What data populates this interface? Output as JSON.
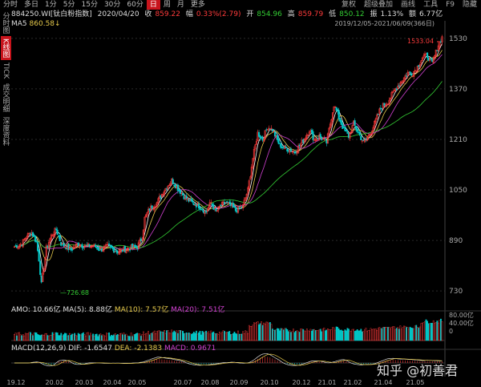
{
  "tabs": [
    "分时",
    "多日",
    "1分",
    "5分",
    "15分",
    "30分",
    "60分",
    "日",
    "周",
    "月",
    "更多"
  ],
  "active_tab": 7,
  "right_tabs": [
    "复权",
    "超级叠加",
    "画线",
    "工具",
    "F9",
    "隐藏"
  ],
  "side_tabs": [
    "分时图",
    "K线图",
    "TICK",
    "成交明细",
    "深度资料"
  ],
  "info": {
    "code": "884250.WI[钛白粉指数]",
    "date": "2020/04/20",
    "close_label": "收",
    "close": "859.22",
    "change_label": "幅",
    "change": "0.33%(2.79)",
    "open_label": "开",
    "open": "854.96",
    "high_label": "高",
    "high": "859.79",
    "low_label": "低",
    "low": "850.12",
    "amp_label": "振",
    "amp": "1.13%",
    "amount_label": "额",
    "amount": "6.77亿"
  },
  "ma5": {
    "label": "MA5",
    "value": "860.58↓"
  },
  "date_range": "2019/12/05-2021/06/09(366日)",
  "price_axis": [
    "1530",
    "1370",
    "1210",
    "1050",
    "890",
    "730"
  ],
  "max_label": "1533.04",
  "min_label": "726.68",
  "volume_axis": [
    "80.00亿",
    "40.00亿",
    "0"
  ],
  "amo": {
    "amo": "AMO: 10.66亿",
    "ma5": "MA(5): 8.88亿",
    "ma10": "MA(10): 7.57亿",
    "ma20": "MA(20): 7.51亿"
  },
  "macd": {
    "label": "MACD(12,26,9)",
    "dif": "DIF: -1.6547",
    "dea": "DEA: -2.1383",
    "macd": "MACD: 0.9671"
  },
  "x_axis": [
    "19.12",
    "20.02",
    "20.03",
    "20.04",
    "20.05",
    "20.07",
    "20.08",
    "20.09",
    "20.10",
    "20.12",
    "21.01",
    "21.02",
    "21.04",
    "21.05"
  ],
  "watermark": "知乎 @初善君",
  "colors": {
    "up": "#ff3b3b",
    "down": "#00c8c8",
    "ma5": "#ffffff",
    "ma10": "#e5c94b",
    "ma20": "#d040d0",
    "ma60": "#33cc33"
  },
  "chart_data": {
    "type": "candlestick",
    "anchor_prices": [
      [
        0,
        870
      ],
      [
        6,
        880
      ],
      [
        10,
        905
      ],
      [
        14,
        915
      ],
      [
        18,
        885
      ],
      [
        20,
        830
      ],
      [
        22,
        750
      ],
      [
        26,
        865
      ],
      [
        30,
        905
      ],
      [
        34,
        925
      ],
      [
        38,
        880
      ],
      [
        42,
        870
      ],
      [
        46,
        860
      ],
      [
        52,
        880
      ],
      [
        58,
        870
      ],
      [
        64,
        875
      ],
      [
        70,
        860
      ],
      [
        76,
        870
      ],
      [
        84,
        855
      ],
      [
        92,
        865
      ],
      [
        100,
        870
      ],
      [
        104,
        900
      ],
      [
        106,
        960
      ],
      [
        110,
        990
      ],
      [
        116,
        1010
      ],
      [
        122,
        1050
      ],
      [
        128,
        1080
      ],
      [
        132,
        1060
      ],
      [
        138,
        1030
      ],
      [
        144,
        1010
      ],
      [
        150,
        1000
      ],
      [
        156,
        980
      ],
      [
        160,
        1010
      ],
      [
        164,
        980
      ],
      [
        168,
        1000
      ],
      [
        172,
        1010
      ],
      [
        176,
        1000
      ],
      [
        180,
        985
      ],
      [
        186,
        1000
      ],
      [
        190,
        1050
      ],
      [
        194,
        1150
      ],
      [
        198,
        1230
      ],
      [
        202,
        1210
      ],
      [
        206,
        1250
      ],
      [
        210,
        1240
      ],
      [
        216,
        1190
      ],
      [
        222,
        1180
      ],
      [
        228,
        1170
      ],
      [
        234,
        1200
      ],
      [
        240,
        1240
      ],
      [
        244,
        1210
      ],
      [
        248,
        1220
      ],
      [
        254,
        1200
      ],
      [
        260,
        1320
      ],
      [
        264,
        1280
      ],
      [
        268,
        1240
      ],
      [
        272,
        1220
      ],
      [
        276,
        1260
      ],
      [
        280,
        1230
      ],
      [
        284,
        1200
      ],
      [
        288,
        1220
      ],
      [
        292,
        1250
      ],
      [
        298,
        1310
      ],
      [
        304,
        1330
      ],
      [
        310,
        1370
      ],
      [
        316,
        1400
      ],
      [
        320,
        1420
      ],
      [
        324,
        1420
      ],
      [
        328,
        1440
      ],
      [
        332,
        1470
      ],
      [
        336,
        1475
      ],
      [
        340,
        1450
      ],
      [
        345,
        1510
      ],
      [
        348,
        1533
      ]
    ],
    "price_range": [
      700,
      1560
    ]
  }
}
